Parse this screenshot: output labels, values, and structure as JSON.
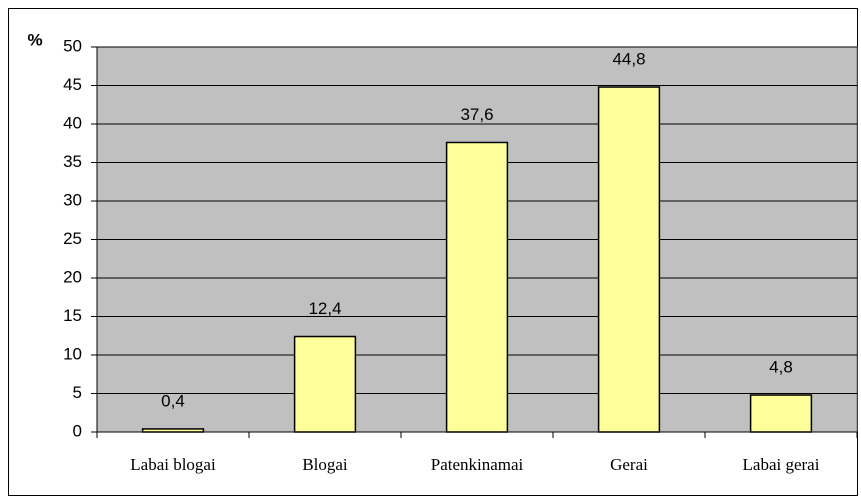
{
  "chart_data": {
    "type": "bar",
    "y_label": "%",
    "categories": [
      "Labai blogai",
      "Blogai",
      "Patenkinamai",
      "Gerai",
      "Labai gerai"
    ],
    "values": [
      0.4,
      12.4,
      37.6,
      44.8,
      4.8
    ],
    "value_labels": [
      "0,4",
      "12,4",
      "37,6",
      "44,8",
      "4,8"
    ],
    "color": "#ffff99",
    "plot_background": "#c0c0c0",
    "ylim": [
      0,
      50
    ],
    "yticks": [
      0,
      5,
      10,
      15,
      20,
      25,
      30,
      35,
      40,
      45,
      50
    ],
    "grid": true
  }
}
